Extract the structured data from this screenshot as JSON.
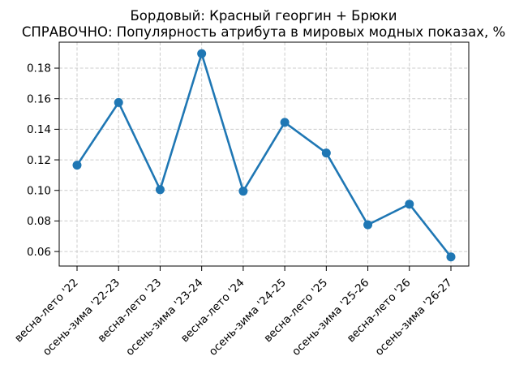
{
  "chart_data": {
    "type": "line",
    "title": "Бордовый: Красный георгин + Брюки",
    "subtitle": "СПРАВОЧНО: Популярность атрибута в мировых модных показах, %",
    "categories": [
      "весна-лето '22",
      "осень-зима '22-23",
      "весна-лето '23",
      "осень-зима '23-24",
      "весна-лето '24",
      "осень-зима '24-25",
      "весна-лето '25",
      "осень-зима '25-26",
      "весна-лето '26",
      "осень-зима '26-27"
    ],
    "values": [
      0.1165,
      0.1575,
      0.1005,
      0.1895,
      0.0995,
      0.1445,
      0.1245,
      0.0775,
      0.091,
      0.0565
    ],
    "yticks": [
      0.06,
      0.08,
      0.1,
      0.12,
      0.14,
      0.16,
      0.18
    ],
    "ylim": [
      0.0505,
      0.197
    ],
    "xlabel": "",
    "ylabel": "",
    "grid": true,
    "legend": false,
    "line_color": "#1f77b4",
    "marker": "circle",
    "grid_color": "#cccccc",
    "axis_color": "#000000",
    "background_color": "#ffffff"
  }
}
